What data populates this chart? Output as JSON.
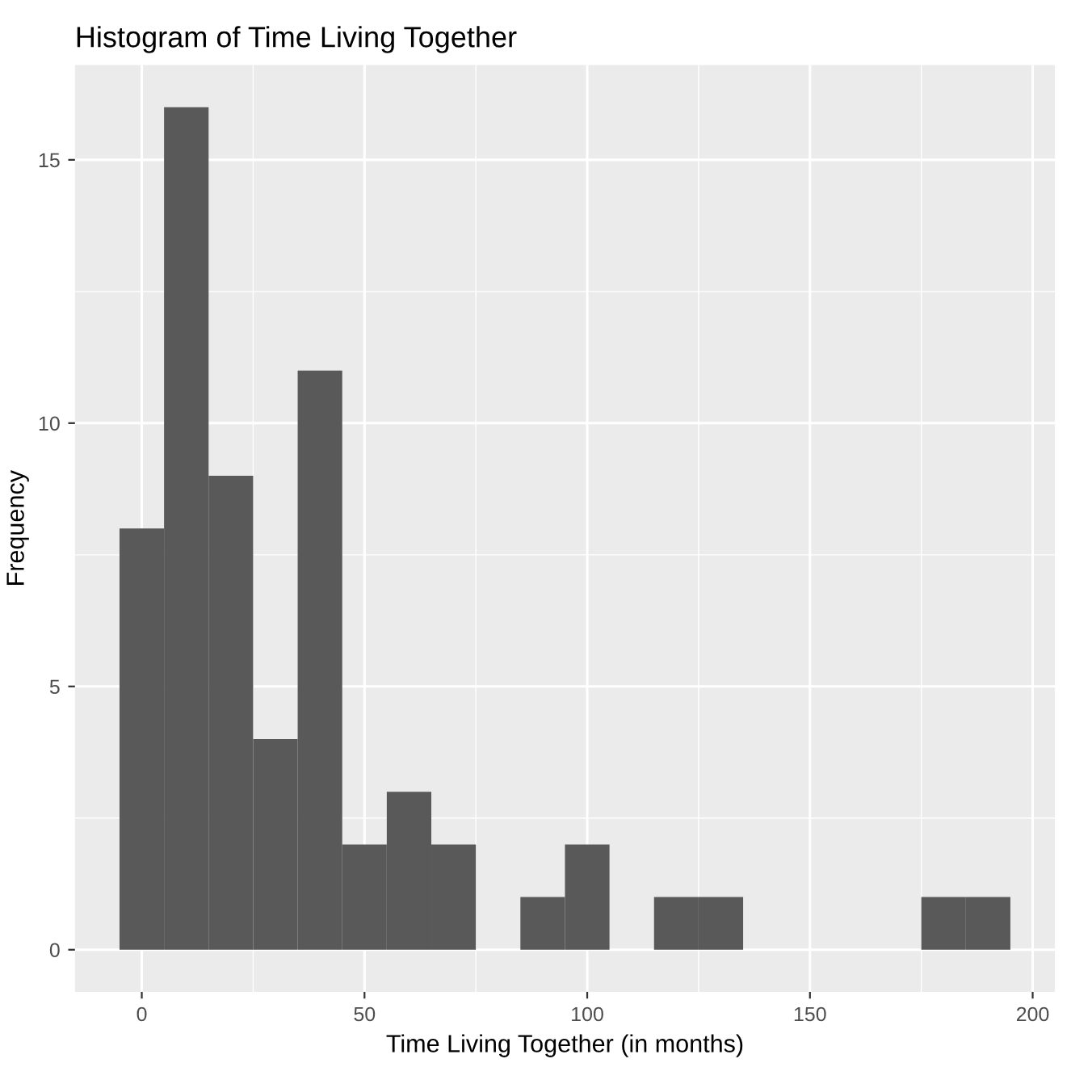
{
  "chart_data": {
    "type": "histogram",
    "title": "Histogram of Time Living Together",
    "xlabel": "Time Living Together (in months)",
    "ylabel": "Frequency",
    "bins": [
      -5,
      5,
      15,
      25,
      35,
      45,
      55,
      65,
      75,
      85,
      95,
      105,
      115,
      125,
      135,
      145,
      155,
      165,
      175,
      185,
      195
    ],
    "values": [
      8,
      16,
      9,
      4,
      11,
      2,
      3,
      2,
      0,
      1,
      2,
      0,
      1,
      1,
      0,
      0,
      0,
      0,
      1,
      1
    ],
    "color": "#595959",
    "xlim": [
      -15,
      205
    ],
    "ylim": [
      -0.8,
      16.8
    ],
    "xticks": [
      0,
      50,
      100,
      150,
      200
    ],
    "yticks": [
      0,
      5,
      10,
      15
    ],
    "grid": true
  }
}
